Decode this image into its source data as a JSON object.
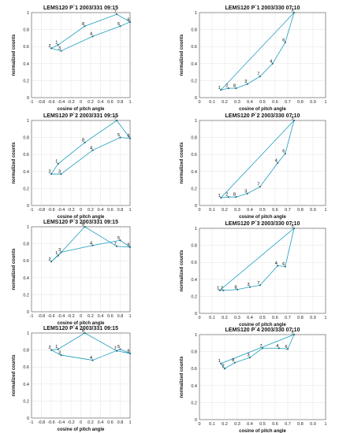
{
  "colors": {
    "series": "#1a9fbf",
    "text": "#111111"
  },
  "chart_data": [
    {
      "type": "line",
      "title": "LEMS120 P`1  2003/331 09:15",
      "xlabel": "cosine of pitch angle",
      "ylabel": "normalized counts",
      "xlim": [
        -1,
        1
      ],
      "ylim": [
        0,
        1
      ],
      "xticks": [
        "-1",
        "-0.8",
        "-0.6",
        "-0.4",
        "-0.2",
        "0",
        "0.2",
        "0.4",
        "0.6",
        "0.8",
        "1"
      ],
      "yticks": [
        "0",
        "0.2",
        "0.4",
        "0.6",
        "0.8",
        "1"
      ],
      "grid": true,
      "points": [
        {
          "label": "1",
          "x": -0.46,
          "y": 0.62
        },
        {
          "label": "2",
          "x": -0.6,
          "y": 0.58
        },
        {
          "label": "3",
          "x": -0.4,
          "y": 0.55
        },
        {
          "label": "4",
          "x": 0.24,
          "y": 0.72
        },
        {
          "label": "5",
          "x": 0.8,
          "y": 0.84
        },
        {
          "label": "6",
          "x": 1.0,
          "y": 0.89
        },
        {
          "label": "7",
          "x": 0.73,
          "y": 0.98
        },
        {
          "label": "8",
          "x": 0.08,
          "y": 0.84
        }
      ]
    },
    {
      "type": "line",
      "title": "LEMS120 P`1  2003/330 07:10",
      "xlabel": "cosine of pitch angle",
      "ylabel": "normalized counts",
      "xlim": [
        0,
        1
      ],
      "ylim": [
        0,
        1
      ],
      "xticks": [
        "0",
        "0.1",
        "0.2",
        "0.3",
        "0.4",
        "0.5",
        "0.6",
        "0.7",
        "0.8",
        "0.9",
        "1"
      ],
      "yticks": [
        "0",
        "0.2",
        "0.4",
        "0.6",
        "0.8",
        "1"
      ],
      "grid": true,
      "points": [
        {
          "label": "1",
          "x": 0.17,
          "y": 0.09
        },
        {
          "label": "2",
          "x": 0.23,
          "y": 0.11
        },
        {
          "label": "8",
          "x": 0.29,
          "y": 0.11
        },
        {
          "label": "3",
          "x": 0.38,
          "y": 0.16
        },
        {
          "label": "7",
          "x": 0.48,
          "y": 0.25
        },
        {
          "label": "4",
          "x": 0.58,
          "y": 0.4
        },
        {
          "label": "6",
          "x": 0.68,
          "y": 0.65
        },
        {
          "label": "5",
          "x": 0.75,
          "y": 1.0
        }
      ]
    },
    {
      "type": "line",
      "title": "LEMS120 P`2  2003/331 09:15",
      "xlabel": "cosine of pitch angle",
      "ylabel": "normalized counts",
      "xlim": [
        -1,
        1
      ],
      "ylim": [
        0,
        1
      ],
      "xticks": [
        "-1",
        "-0.8",
        "-0.6",
        "-0.4",
        "-0.2",
        "0",
        "0.2",
        "0.4",
        "0.6",
        "0.8",
        "1"
      ],
      "yticks": [
        "0",
        "0.2",
        "0.4",
        "0.6",
        "0.8",
        "1"
      ],
      "grid": true,
      "points": [
        {
          "label": "1",
          "x": -0.46,
          "y": 0.49
        },
        {
          "label": "2",
          "x": -0.6,
          "y": 0.37
        },
        {
          "label": "3",
          "x": -0.4,
          "y": 0.37
        },
        {
          "label": "4",
          "x": 0.24,
          "y": 0.65
        },
        {
          "label": "5",
          "x": 0.8,
          "y": 0.8
        },
        {
          "label": "6",
          "x": 1.0,
          "y": 0.79
        },
        {
          "label": "7",
          "x": 0.73,
          "y": 1.0
        },
        {
          "label": "8",
          "x": 0.08,
          "y": 0.74
        }
      ]
    },
    {
      "type": "line",
      "title": "LEMS120 P`2  2003/330 07:10",
      "xlabel": "cosine of pitch angle",
      "ylabel": "normalized counts",
      "xlim": [
        0,
        1
      ],
      "ylim": [
        0,
        1
      ],
      "xticks": [
        "0",
        "0.1",
        "0.2",
        "0.3",
        "0.4",
        "0.5",
        "0.6",
        "0.7",
        "0.8",
        "0.9",
        "1"
      ],
      "yticks": [
        "0",
        "0.2",
        "0.4",
        "0.6",
        "0.8",
        "1"
      ],
      "grid": true,
      "points": [
        {
          "label": "1",
          "x": 0.17,
          "y": 0.09
        },
        {
          "label": "2",
          "x": 0.23,
          "y": 0.1
        },
        {
          "label": "8",
          "x": 0.29,
          "y": 0.1
        },
        {
          "label": "3",
          "x": 0.38,
          "y": 0.14
        },
        {
          "label": "7",
          "x": 0.48,
          "y": 0.22
        },
        {
          "label": "4",
          "x": 0.62,
          "y": 0.5
        },
        {
          "label": "6",
          "x": 0.68,
          "y": 0.61
        },
        {
          "label": "5",
          "x": 0.75,
          "y": 1.0
        }
      ]
    },
    {
      "type": "line",
      "title": "LEMS120 P`3  2003/331 09:15",
      "xlabel": "cosine of pitch angle",
      "ylabel": "normalized counts",
      "xlim": [
        -1,
        1
      ],
      "ylim": [
        0,
        1
      ],
      "xticks": [
        "-1",
        "-0.8",
        "-0.6",
        "-0.4",
        "-0.2",
        "0",
        "0.2",
        "0.4",
        "0.6",
        "0.8",
        "1"
      ],
      "yticks": [
        "0",
        "0.2",
        "0.4",
        "0.6",
        "0.8",
        "1"
      ],
      "grid": true,
      "points": [
        {
          "label": "1",
          "x": -0.46,
          "y": 0.66
        },
        {
          "label": "2",
          "x": -0.6,
          "y": 0.59
        },
        {
          "label": "3",
          "x": -0.4,
          "y": 0.7
        },
        {
          "label": "4",
          "x": 0.24,
          "y": 0.78
        },
        {
          "label": "5",
          "x": 0.8,
          "y": 0.84
        },
        {
          "label": "6",
          "x": 1.0,
          "y": 0.76
        },
        {
          "label": "7",
          "x": 0.73,
          "y": 0.77
        },
        {
          "label": "8",
          "x": 0.08,
          "y": 1.0
        }
      ]
    },
    {
      "type": "line",
      "title": "LEMS120 P`3  2003/330 07:10",
      "xlabel": "cosine of pitch angle",
      "ylabel": "normalized counts",
      "xlim": [
        0,
        1
      ],
      "ylim": [
        0,
        1
      ],
      "xticks": [
        "0",
        "0.1",
        "0.2",
        "0.3",
        "0.4",
        "0.5",
        "0.6",
        "0.7",
        "0.8",
        "0.9",
        "1"
      ],
      "yticks": [
        "0",
        "0.2",
        "0.4",
        "0.6",
        "0.8",
        "1"
      ],
      "grid": true,
      "points": [
        {
          "label": "1",
          "x": 0.16,
          "y": 0.27
        },
        {
          "label": "2",
          "x": 0.19,
          "y": 0.27
        },
        {
          "label": "8",
          "x": 0.3,
          "y": 0.28
        },
        {
          "label": "3",
          "x": 0.4,
          "y": 0.31
        },
        {
          "label": "7",
          "x": 0.48,
          "y": 0.33
        },
        {
          "label": "4",
          "x": 0.62,
          "y": 0.56
        },
        {
          "label": "6",
          "x": 0.68,
          "y": 0.55
        },
        {
          "label": "5",
          "x": 0.75,
          "y": 1.0
        }
      ]
    },
    {
      "type": "line",
      "title": "LEMS120 P`4  2003/331 09:15",
      "xlabel": "cosine of pitch angle",
      "ylabel": "normalized counts",
      "xlim": [
        -1,
        1
      ],
      "ylim": [
        0,
        1
      ],
      "xticks": [
        "-1",
        "-0.8",
        "-0.6",
        "-0.4",
        "-0.2",
        "0",
        "0.2",
        "0.4",
        "0.6",
        "0.8",
        "1"
      ],
      "yticks": [
        "0",
        "0.2",
        "0.4",
        "0.6",
        "0.8",
        "1"
      ],
      "grid": true,
      "points": [
        {
          "label": "1",
          "x": -0.46,
          "y": 0.81
        },
        {
          "label": "2",
          "x": -0.6,
          "y": 0.8
        },
        {
          "label": "3",
          "x": -0.4,
          "y": 0.74
        },
        {
          "label": "4",
          "x": 0.24,
          "y": 0.68
        },
        {
          "label": "5",
          "x": 0.8,
          "y": 0.81
        },
        {
          "label": "6",
          "x": 1.0,
          "y": 0.76
        },
        {
          "label": "7",
          "x": 0.73,
          "y": 0.79
        },
        {
          "label": "8",
          "x": 0.08,
          "y": 1.0
        }
      ]
    },
    {
      "type": "line",
      "title": "LEMS120 P`4  2003/330 07:10",
      "xlabel": "cosine of pitch angle",
      "ylabel": "normalized counts",
      "xlim": [
        0,
        1
      ],
      "ylim": [
        0,
        1
      ],
      "xticks": [
        "0",
        "0.1",
        "0.2",
        "0.3",
        "0.4",
        "0.5",
        "0.6",
        "0.7",
        "0.8",
        "0.9",
        "1"
      ],
      "yticks": [
        "0",
        "0.2",
        "0.4",
        "0.6",
        "0.8",
        "1"
      ],
      "grid": true,
      "points": [
        {
          "label": "1",
          "x": 0.17,
          "y": 0.66
        },
        {
          "label": "2",
          "x": 0.2,
          "y": 0.6
        },
        {
          "label": "8",
          "x": 0.28,
          "y": 0.67
        },
        {
          "label": "3",
          "x": 0.4,
          "y": 0.73
        },
        {
          "label": "7",
          "x": 0.5,
          "y": 0.84
        },
        {
          "label": "4",
          "x": 0.63,
          "y": 0.84
        },
        {
          "label": "6",
          "x": 0.7,
          "y": 0.83
        },
        {
          "label": "5",
          "x": 0.75,
          "y": 1.0
        }
      ]
    }
  ]
}
